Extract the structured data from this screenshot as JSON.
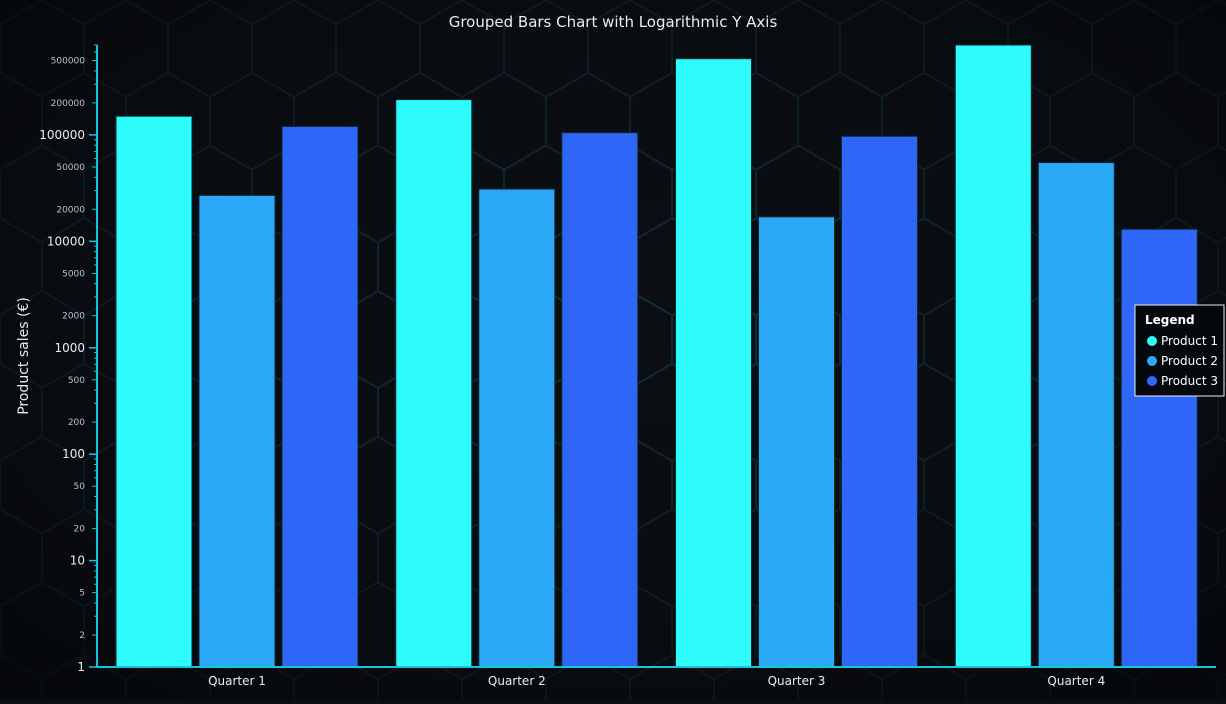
{
  "chart_data": {
    "type": "bar",
    "title": "Grouped Bars Chart with Logarithmic Y Axis",
    "xlabel": "",
    "ylabel": "Product sales (€)",
    "yscale": "log",
    "ylim": [
      1,
      700000
    ],
    "categories": [
      "Quarter 1",
      "Quarter 2",
      "Quarter 3",
      "Quarter 4"
    ],
    "series": [
      {
        "name": "Product 1",
        "color": "#2efcfc",
        "values": [
          150000,
          215000,
          520000,
          700000
        ]
      },
      {
        "name": "Product 2",
        "color": "#2ba8f6",
        "values": [
          27000,
          31000,
          17000,
          55000
        ]
      },
      {
        "name": "Product 3",
        "color": "#2e66f7",
        "values": [
          120000,
          105000,
          97000,
          13000
        ]
      }
    ],
    "y_major_ticks": [
      {
        "value": 1,
        "label": "1"
      },
      {
        "value": 10,
        "label": "10"
      },
      {
        "value": 100,
        "label": "100"
      },
      {
        "value": 1000,
        "label": "1000"
      },
      {
        "value": 10000,
        "label": "10000"
      },
      {
        "value": 100000,
        "label": "100000"
      }
    ],
    "y_minor_labeled_ticks": [
      {
        "value": 2,
        "label": "2"
      },
      {
        "value": 5,
        "label": "5"
      },
      {
        "value": 20,
        "label": "20"
      },
      {
        "value": 50,
        "label": "50"
      },
      {
        "value": 200,
        "label": "200"
      },
      {
        "value": 500,
        "label": "500"
      },
      {
        "value": 2000,
        "label": "2000"
      },
      {
        "value": 5000,
        "label": "5000"
      },
      {
        "value": 20000,
        "label": "20000"
      },
      {
        "value": 50000,
        "label": "50000"
      },
      {
        "value": 200000,
        "label": "200000"
      },
      {
        "value": 500000,
        "label": "500000"
      }
    ],
    "legend": {
      "title": "Legend",
      "position": "right"
    },
    "grid": false,
    "colors": {
      "background": "#0b0f14",
      "axis": "#18c3dc"
    }
  }
}
